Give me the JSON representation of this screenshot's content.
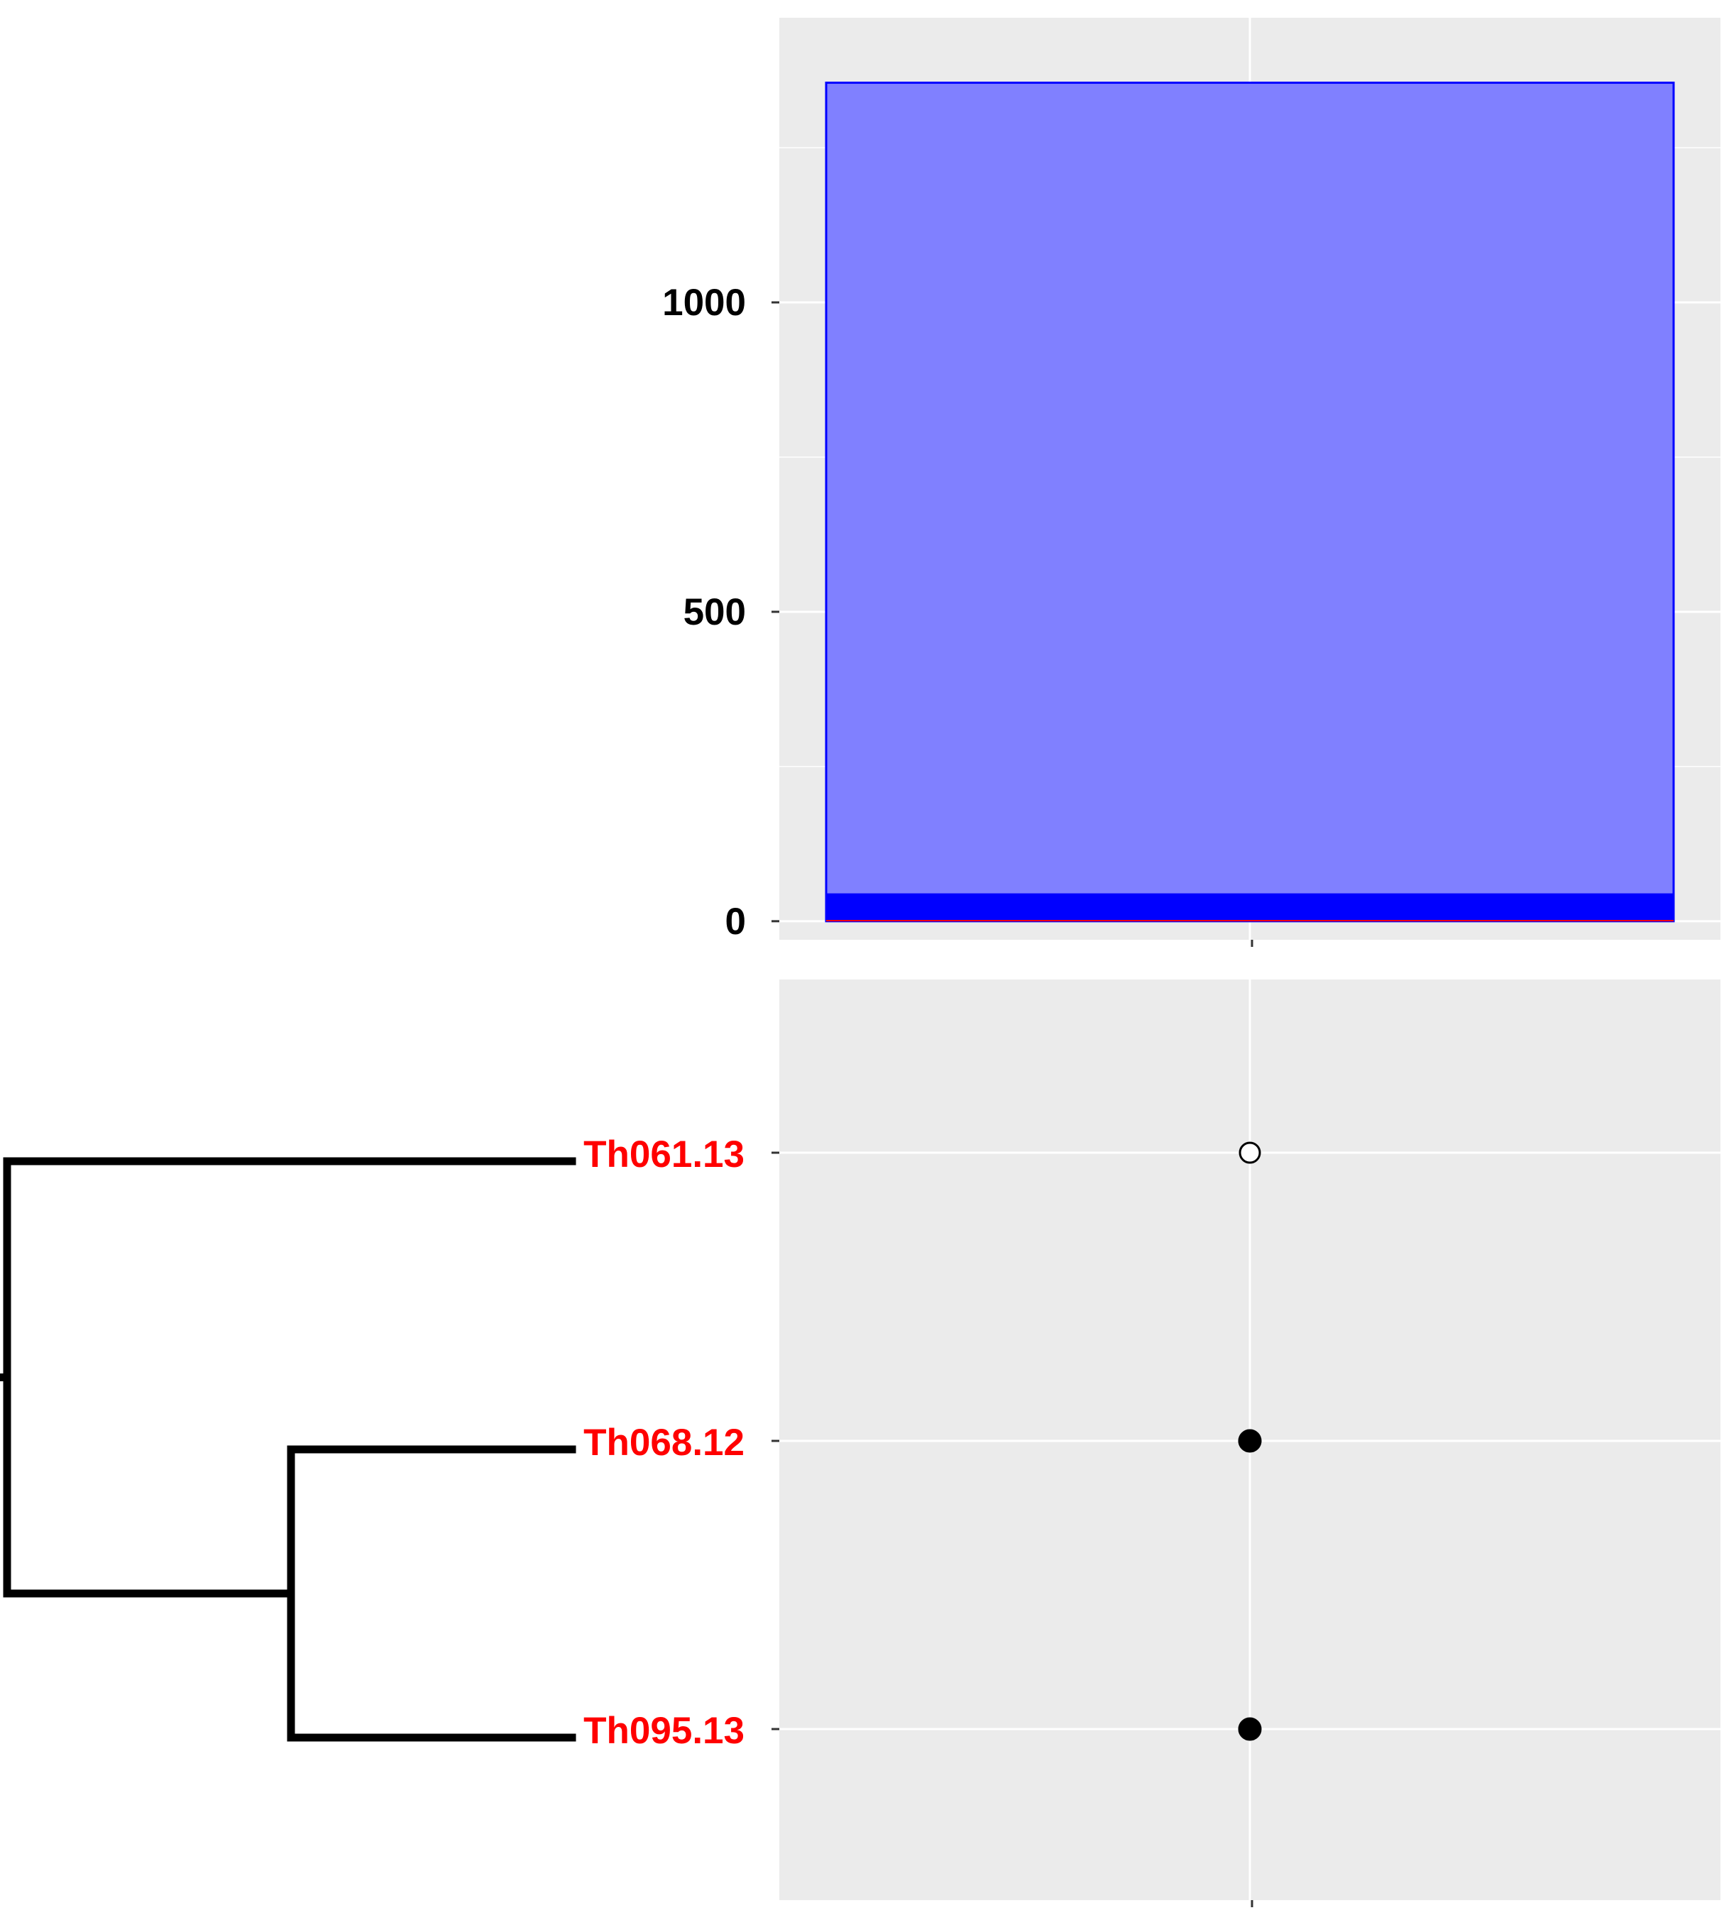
{
  "chart_data": [
    {
      "type": "bar",
      "categories": [
        ""
      ],
      "series": [
        {
          "values": [
            1355
          ],
          "color": "#8080FF",
          "stroke": "#0000FF"
        },
        {
          "values": [
            45
          ],
          "color": "#0000FF"
        },
        {
          "values": [
            2
          ],
          "color": "#FF0000"
        }
      ],
      "ylim": [
        -30,
        1460
      ],
      "yticks": [
        0,
        500,
        1000
      ],
      "ytick_labels": [
        "0",
        "500",
        "1000"
      ],
      "grid": true,
      "title": "",
      "xlabel": "",
      "ylabel": ""
    },
    {
      "type": "scatter",
      "categories": [
        "Th061.13",
        "Th068.12",
        "Th095.13"
      ],
      "points": [
        {
          "label": "Th061.13",
          "filled": false
        },
        {
          "label": "Th068.12",
          "filled": true
        },
        {
          "label": "Th095.13",
          "filled": true
        }
      ],
      "label_color": "#FF0000",
      "grid": true
    }
  ],
  "dendrogram": {
    "leaves": [
      "Th061.13",
      "Th068.12",
      "Th095.13"
    ],
    "clusters": [
      [
        "Th068.12",
        "Th095.13"
      ],
      [
        "Th061.13",
        [
          "Th068.12",
          "Th095.13"
        ]
      ]
    ]
  },
  "colors": {
    "panel_bg": "#EBEBEB",
    "grid": "#FFFFFF",
    "tree": "#000000"
  }
}
